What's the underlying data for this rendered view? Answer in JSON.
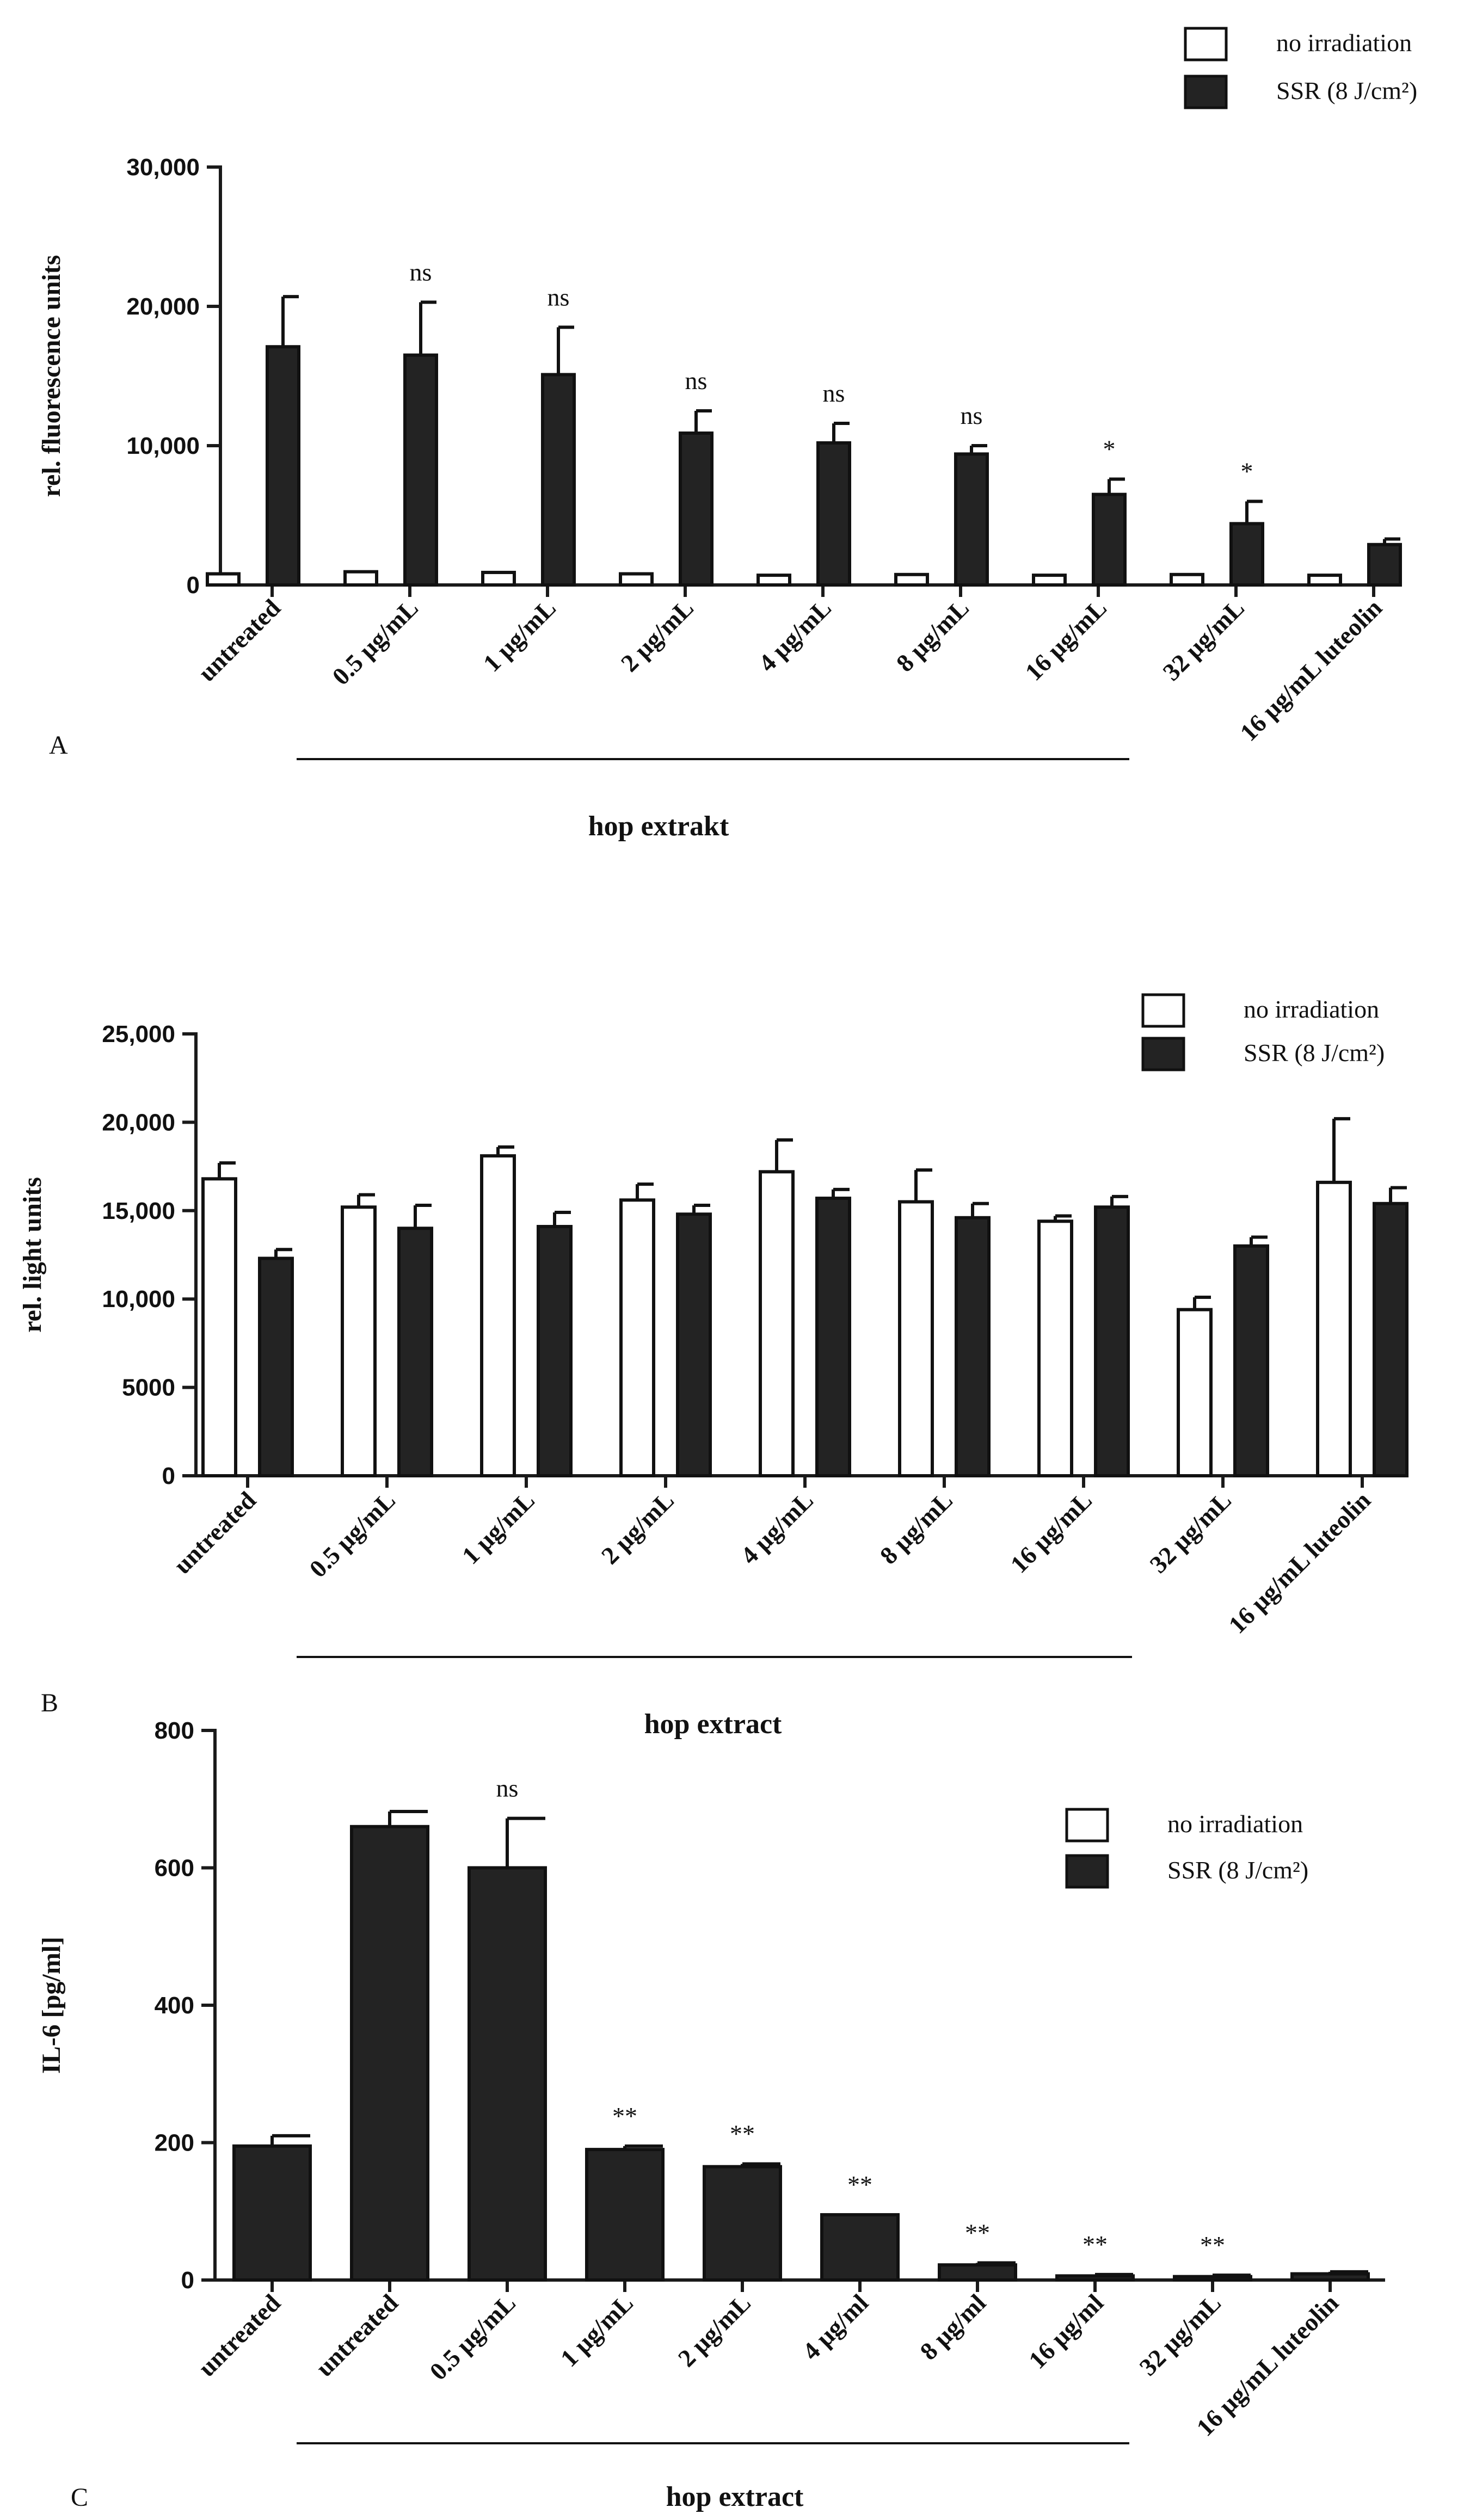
{
  "chart_data": [
    {
      "panel": "A",
      "type": "bar",
      "ylabel": "rel. fluorescence units",
      "ylim": [
        0,
        30000
      ],
      "yticks": [
        0,
        10000,
        20000,
        30000
      ],
      "ytick_labels": [
        "0",
        "10,000",
        "20,000",
        "30,000"
      ],
      "categories": [
        "untreated",
        "0.5 µg/mL",
        "1 µg/mL",
        "2 µg/mL",
        "4 µg/mL",
        "8 µg/mL",
        "16 µg/mL",
        "32 µg/mL",
        "16 µg/mL luteolin"
      ],
      "group_label": "hop extrakt",
      "series": [
        {
          "name": "no irradiation",
          "style": "light",
          "values": [
            800,
            950,
            900,
            800,
            700,
            750,
            700,
            750,
            700
          ],
          "errors": [
            0,
            0,
            0,
            0,
            0,
            0,
            0,
            0,
            0
          ]
        },
        {
          "name": "SSR (8 J/cm²)",
          "style": "dark",
          "values": [
            17100,
            16500,
            15100,
            10900,
            10200,
            9400,
            6500,
            4400,
            2900
          ],
          "errors": [
            3600,
            3800,
            3400,
            1600,
            1400,
            600,
            1100,
            1600,
            400
          ]
        }
      ],
      "significance": [
        "",
        "ns",
        "ns",
        "ns",
        "ns",
        "ns",
        "*",
        "*",
        ""
      ],
      "sig_series": 1
    },
    {
      "panel": "B",
      "type": "bar",
      "ylabel": "rel. light units",
      "ylim": [
        0,
        25000
      ],
      "yticks": [
        0,
        5000,
        10000,
        15000,
        20000,
        25000
      ],
      "ytick_labels": [
        "0",
        "5000",
        "10,000",
        "15,000",
        "20,000",
        "25,000"
      ],
      "categories": [
        "untreated",
        "0.5 µg/mL",
        "1 µg/mL",
        "2 µg/mL",
        "4 µg/mL",
        "8 µg/mL",
        "16 µg/mL",
        "32 µg/mL",
        "16 µg/mL luteolin"
      ],
      "group_label": "hop extract",
      "series": [
        {
          "name": "no irradiation",
          "style": "light",
          "values": [
            16800,
            15200,
            18100,
            15600,
            17200,
            15500,
            14400,
            9400,
            16600
          ],
          "errors": [
            900,
            700,
            500,
            900,
            1800,
            1800,
            300,
            700,
            3600
          ]
        },
        {
          "name": "SSR (8 J/cm²)",
          "style": "dark",
          "values": [
            12300,
            14000,
            14100,
            14800,
            15700,
            14600,
            15200,
            13000,
            15400
          ],
          "errors": [
            500,
            1300,
            800,
            500,
            500,
            800,
            600,
            500,
            900
          ]
        }
      ],
      "significance": [
        "",
        "",
        "",
        "",
        "",
        "",
        "",
        "",
        ""
      ],
      "sig_series": 1
    },
    {
      "panel": "C",
      "type": "bar",
      "ylabel": "IL-6 [pg/ml]",
      "ylim": [
        0,
        800
      ],
      "yticks": [
        0,
        200,
        400,
        600,
        800
      ],
      "ytick_labels": [
        "0",
        "200",
        "400",
        "600",
        "800"
      ],
      "categories": [
        "untreated",
        "untreated",
        "0.5 µg/mL",
        "1 µg/mL",
        "2 µg/mL",
        "4 µg/ml",
        "8 µg/ml",
        "16 µg/ml",
        "32 µg/mL",
        "16 µg/mL luteolin"
      ],
      "group_label": "hop extract",
      "series": [
        {
          "name": "SSR (8 J/cm²)",
          "style": "dark",
          "values": [
            195,
            660,
            600,
            190,
            165,
            95,
            22,
            6,
            5,
            9
          ],
          "errors": [
            15,
            22,
            72,
            5,
            4,
            0,
            3,
            2,
            2,
            3
          ]
        }
      ],
      "significance": [
        "",
        "",
        "ns",
        "**",
        "**",
        "**",
        "**",
        "**",
        "**",
        ""
      ],
      "sig_series": 0
    }
  ],
  "legends": [
    {
      "panel": "A",
      "items": [
        {
          "label": "no irradiation",
          "style": "light"
        },
        {
          "label": "SSR (8 J/cm²)",
          "style": "dark"
        }
      ]
    },
    {
      "panel": "B",
      "items": [
        {
          "label": "no irradiation",
          "style": "light"
        },
        {
          "label": "SSR (8 J/cm²)",
          "style": "dark"
        }
      ]
    },
    {
      "panel": "C",
      "items": [
        {
          "label": "no irradiation",
          "style": "light"
        },
        {
          "label": "SSR (8 J/cm²)",
          "style": "dark"
        }
      ]
    }
  ],
  "panel_letters": [
    "A",
    "B",
    "C"
  ]
}
